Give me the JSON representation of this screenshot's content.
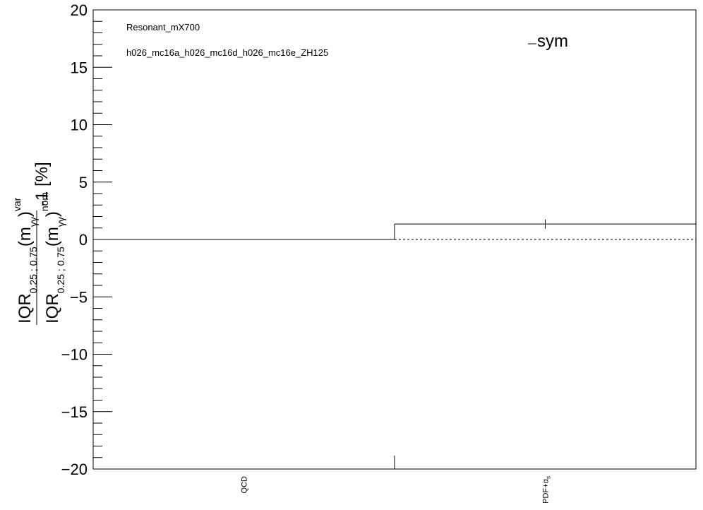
{
  "chart_data": {
    "type": "bar",
    "categories": [
      "QCD",
      "PDF+αs"
    ],
    "category_labels": [
      {
        "text": "QCD"
      },
      {
        "text": "PDF+α",
        "sub": "s"
      }
    ],
    "series": [
      {
        "name": "sym",
        "values": [
          0.0,
          1.35
        ],
        "errors": [
          0.0,
          0.4
        ]
      }
    ],
    "annotations": [
      "Resonant_mX700",
      "h026_mc16a_h026_mc16d_h026_mc16e_ZH125"
    ],
    "legend": {
      "label": "sym",
      "position": "top-right"
    },
    "ylabel": {
      "numerator": {
        "main": "IQR",
        "sub": "0.25 ; 0.75",
        "mid": "(m",
        "mid_sub": "γγ",
        "close": ")",
        "sup": "var"
      },
      "denominator": {
        "main": "IQR",
        "sub": "0.25 ; 0.75",
        "mid": "(m",
        "mid_sub": "γγ",
        "close": ")",
        "sup": "nom"
      },
      "suffix": "-1 [%]"
    },
    "ylim": [
      -20,
      20
    ],
    "y_major_ticks": [
      -20,
      -15,
      -10,
      -5,
      0,
      5,
      10,
      15,
      20
    ],
    "y_tick_labels": [
      "−20",
      "−15",
      "−10",
      "−5",
      "0",
      "5",
      "10",
      "15",
      "20"
    ],
    "y_minor_step": 1,
    "reference_line": 0,
    "grid": false
  }
}
